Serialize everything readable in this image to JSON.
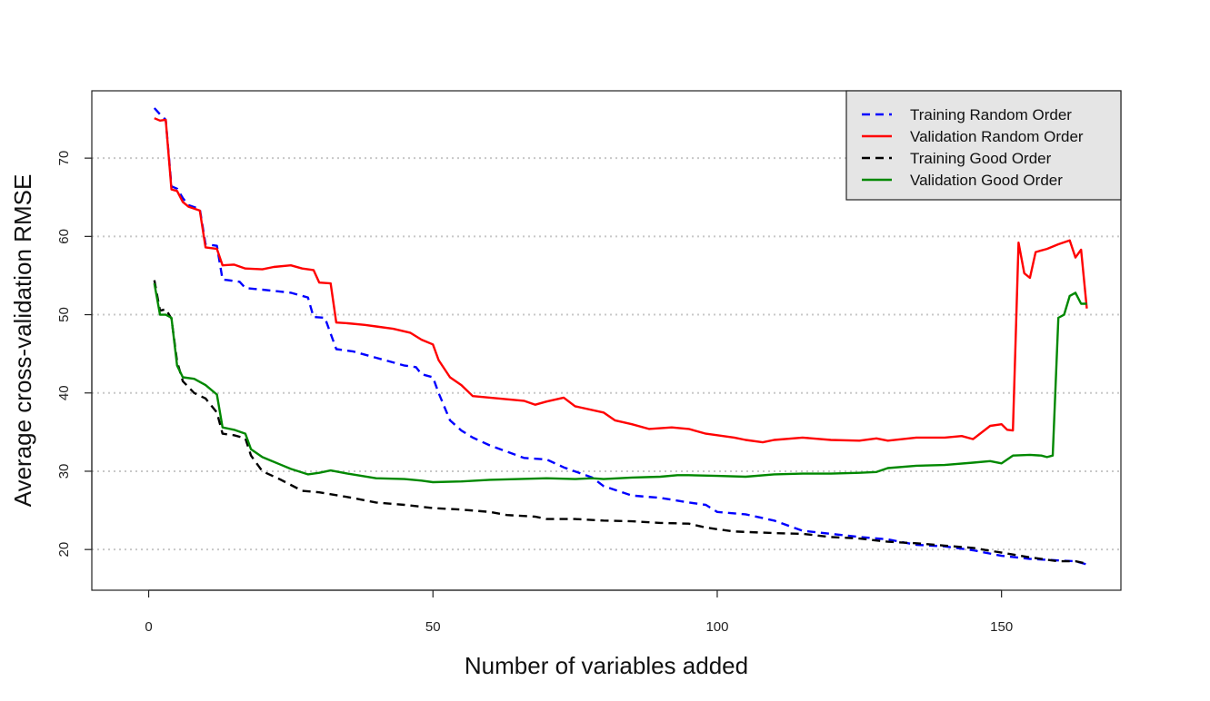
{
  "chart_data": {
    "type": "line",
    "title": "",
    "xlabel": "Number of variables added",
    "ylabel": "Average cross-validation RMSE",
    "xlim": [
      -10,
      171
    ],
    "ylim": [
      14.8,
      78.6
    ],
    "x_ticks": [
      0,
      50,
      100,
      150
    ],
    "y_ticks": [
      20,
      30,
      40,
      50,
      60,
      70
    ],
    "grid": "horizontal dotted",
    "legend_position": "top-right",
    "legend_background": "#e5e5e5",
    "series": [
      {
        "name": "Training Random Order",
        "color": "#0000ff",
        "dash": "dashed",
        "points": [
          [
            1,
            76.4
          ],
          [
            2,
            75.6
          ],
          [
            3,
            74.9
          ],
          [
            4,
            66.4
          ],
          [
            5,
            66.1
          ],
          [
            6,
            64.9
          ],
          [
            7,
            64.0
          ],
          [
            9,
            63.5
          ],
          [
            10,
            59.0
          ],
          [
            12,
            58.8
          ],
          [
            13,
            54.5
          ],
          [
            14,
            54.4
          ],
          [
            16,
            54.2
          ],
          [
            17,
            53.4
          ],
          [
            20,
            53.2
          ],
          [
            25,
            52.8
          ],
          [
            28,
            52.2
          ],
          [
            29,
            49.7
          ],
          [
            31,
            49.6
          ],
          [
            33,
            45.6
          ],
          [
            36,
            45.3
          ],
          [
            40,
            44.5
          ],
          [
            45,
            43.5
          ],
          [
            47,
            43.3
          ],
          [
            48,
            42.4
          ],
          [
            50,
            42.0
          ],
          [
            51,
            40.0
          ],
          [
            53,
            36.5
          ],
          [
            55,
            35.2
          ],
          [
            57,
            34.3
          ],
          [
            60,
            33.3
          ],
          [
            63,
            32.5
          ],
          [
            66,
            31.7
          ],
          [
            70,
            31.5
          ],
          [
            73,
            30.5
          ],
          [
            78,
            29.2
          ],
          [
            80,
            28.1
          ],
          [
            85,
            26.9
          ],
          [
            90,
            26.6
          ],
          [
            95,
            26.0
          ],
          [
            98,
            25.7
          ],
          [
            100,
            24.8
          ],
          [
            105,
            24.5
          ],
          [
            110,
            23.7
          ],
          [
            115,
            22.4
          ],
          [
            120,
            22.0
          ],
          [
            125,
            21.6
          ],
          [
            130,
            21.3
          ],
          [
            135,
            20.6
          ],
          [
            140,
            20.4
          ],
          [
            145,
            19.9
          ],
          [
            150,
            19.2
          ],
          [
            155,
            18.8
          ],
          [
            160,
            18.6
          ],
          [
            163,
            18.5
          ],
          [
            165,
            18.1
          ]
        ]
      },
      {
        "name": "Validation Random Order",
        "color": "#ff0000",
        "dash": "solid",
        "points": [
          [
            1,
            75.1
          ],
          [
            2,
            74.8
          ],
          [
            3,
            74.9
          ],
          [
            4,
            66.0
          ],
          [
            5,
            65.8
          ],
          [
            6,
            64.4
          ],
          [
            7,
            63.8
          ],
          [
            9,
            63.3
          ],
          [
            10,
            58.6
          ],
          [
            12,
            58.4
          ],
          [
            13,
            56.3
          ],
          [
            15,
            56.4
          ],
          [
            17,
            55.9
          ],
          [
            20,
            55.8
          ],
          [
            22,
            56.1
          ],
          [
            25,
            56.3
          ],
          [
            27,
            55.9
          ],
          [
            29,
            55.7
          ],
          [
            30,
            54.1
          ],
          [
            32,
            54.0
          ],
          [
            33,
            49.0
          ],
          [
            35,
            48.9
          ],
          [
            38,
            48.7
          ],
          [
            40,
            48.5
          ],
          [
            43,
            48.2
          ],
          [
            46,
            47.7
          ],
          [
            48,
            46.8
          ],
          [
            50,
            46.2
          ],
          [
            51,
            44.2
          ],
          [
            53,
            42.0
          ],
          [
            55,
            41.0
          ],
          [
            57,
            39.6
          ],
          [
            60,
            39.4
          ],
          [
            63,
            39.2
          ],
          [
            66,
            39.0
          ],
          [
            68,
            38.5
          ],
          [
            70,
            38.9
          ],
          [
            73,
            39.4
          ],
          [
            75,
            38.3
          ],
          [
            80,
            37.5
          ],
          [
            82,
            36.5
          ],
          [
            85,
            36.0
          ],
          [
            88,
            35.4
          ],
          [
            92,
            35.6
          ],
          [
            95,
            35.4
          ],
          [
            98,
            34.8
          ],
          [
            100,
            34.6
          ],
          [
            103,
            34.3
          ],
          [
            105,
            34.0
          ],
          [
            108,
            33.7
          ],
          [
            110,
            34.0
          ],
          [
            115,
            34.3
          ],
          [
            120,
            34.0
          ],
          [
            125,
            33.9
          ],
          [
            128,
            34.2
          ],
          [
            130,
            33.9
          ],
          [
            135,
            34.3
          ],
          [
            140,
            34.3
          ],
          [
            143,
            34.5
          ],
          [
            145,
            34.1
          ],
          [
            148,
            35.8
          ],
          [
            150,
            36.0
          ],
          [
            151,
            35.3
          ],
          [
            152,
            35.2
          ],
          [
            153,
            59.2
          ],
          [
            154,
            55.3
          ],
          [
            155,
            54.7
          ],
          [
            156,
            58.0
          ],
          [
            158,
            58.4
          ],
          [
            160,
            59.0
          ],
          [
            162,
            59.5
          ],
          [
            163,
            57.3
          ],
          [
            164,
            58.3
          ],
          [
            165,
            50.8
          ]
        ]
      },
      {
        "name": "Training Good Order",
        "color": "#000000",
        "dash": "dashed",
        "points": [
          [
            1,
            54.4
          ],
          [
            2,
            50.5
          ],
          [
            3,
            50.7
          ],
          [
            4,
            49.5
          ],
          [
            5,
            44.0
          ],
          [
            6,
            41.5
          ],
          [
            8,
            40.0
          ],
          [
            10,
            39.3
          ],
          [
            12,
            37.5
          ],
          [
            13,
            34.8
          ],
          [
            15,
            34.6
          ],
          [
            17,
            34.2
          ],
          [
            18,
            32.0
          ],
          [
            20,
            30.0
          ],
          [
            23,
            29.0
          ],
          [
            27,
            27.5
          ],
          [
            30,
            27.3
          ],
          [
            35,
            26.7
          ],
          [
            40,
            26.0
          ],
          [
            45,
            25.7
          ],
          [
            50,
            25.3
          ],
          [
            55,
            25.1
          ],
          [
            60,
            24.8
          ],
          [
            63,
            24.4
          ],
          [
            68,
            24.2
          ],
          [
            70,
            23.9
          ],
          [
            75,
            23.9
          ],
          [
            80,
            23.7
          ],
          [
            85,
            23.6
          ],
          [
            90,
            23.4
          ],
          [
            95,
            23.3
          ],
          [
            98,
            22.8
          ],
          [
            100,
            22.6
          ],
          [
            103,
            22.3
          ],
          [
            110,
            22.1
          ],
          [
            115,
            22.0
          ],
          [
            120,
            21.6
          ],
          [
            125,
            21.4
          ],
          [
            130,
            21.0
          ],
          [
            135,
            20.8
          ],
          [
            140,
            20.5
          ],
          [
            145,
            20.2
          ],
          [
            150,
            19.6
          ],
          [
            155,
            19.0
          ],
          [
            160,
            18.5
          ],
          [
            163,
            18.5
          ],
          [
            165,
            18.2
          ]
        ]
      },
      {
        "name": "Validation Good Order",
        "color": "#008800",
        "dash": "solid",
        "points": [
          [
            1,
            54.0
          ],
          [
            2,
            50.0
          ],
          [
            3,
            50.0
          ],
          [
            4,
            49.6
          ],
          [
            5,
            43.5
          ],
          [
            6,
            42.0
          ],
          [
            8,
            41.8
          ],
          [
            10,
            41.0
          ],
          [
            12,
            39.8
          ],
          [
            13,
            35.6
          ],
          [
            15,
            35.3
          ],
          [
            17,
            34.8
          ],
          [
            18,
            32.8
          ],
          [
            20,
            31.8
          ],
          [
            23,
            30.9
          ],
          [
            25,
            30.3
          ],
          [
            28,
            29.6
          ],
          [
            30,
            29.8
          ],
          [
            32,
            30.1
          ],
          [
            35,
            29.7
          ],
          [
            40,
            29.1
          ],
          [
            45,
            29.0
          ],
          [
            48,
            28.8
          ],
          [
            50,
            28.6
          ],
          [
            55,
            28.7
          ],
          [
            60,
            28.9
          ],
          [
            65,
            29.0
          ],
          [
            70,
            29.1
          ],
          [
            75,
            29.0
          ],
          [
            78,
            29.1
          ],
          [
            80,
            29.0
          ],
          [
            85,
            29.2
          ],
          [
            90,
            29.3
          ],
          [
            93,
            29.5
          ],
          [
            95,
            29.5
          ],
          [
            100,
            29.4
          ],
          [
            105,
            29.3
          ],
          [
            110,
            29.6
          ],
          [
            115,
            29.7
          ],
          [
            120,
            29.7
          ],
          [
            125,
            29.8
          ],
          [
            128,
            29.9
          ],
          [
            130,
            30.4
          ],
          [
            135,
            30.7
          ],
          [
            140,
            30.8
          ],
          [
            145,
            31.1
          ],
          [
            148,
            31.3
          ],
          [
            150,
            31.0
          ],
          [
            152,
            32.0
          ],
          [
            155,
            32.1
          ],
          [
            157,
            32.0
          ],
          [
            158,
            31.8
          ],
          [
            159,
            32.0
          ],
          [
            160,
            49.6
          ],
          [
            161,
            50.0
          ],
          [
            162,
            52.4
          ],
          [
            163,
            52.8
          ],
          [
            164,
            51.4
          ],
          [
            165,
            51.4
          ]
        ]
      }
    ]
  }
}
